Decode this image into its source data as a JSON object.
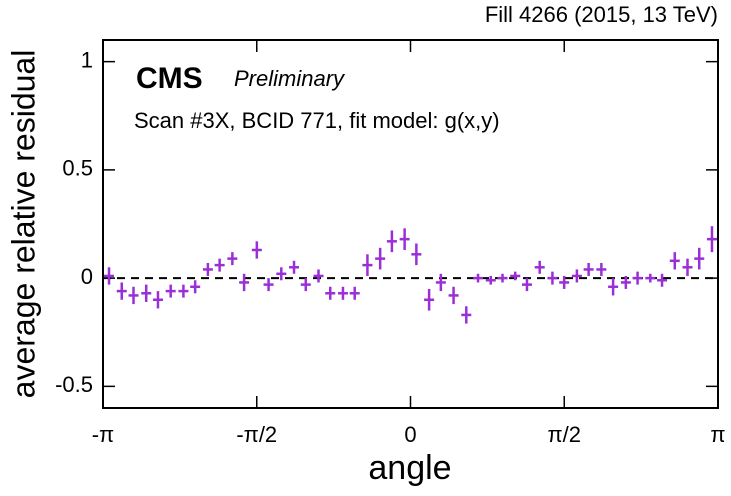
{
  "chart_data": {
    "type": "errorbar",
    "title": "Fill 4266 (2015, 13 TeV)",
    "experiment": "CMS",
    "status": "Preliminary",
    "subtitle": "Scan #3X, BCID 771, fit model: g(x,y)",
    "xlabel": "angle",
    "ylabel": "average relative residual",
    "color": "#9b2fd6",
    "reference_line": 0,
    "xlim": [
      -3.1416,
      3.1416
    ],
    "ylim": [
      -0.6,
      1.1
    ],
    "xticks": [
      {
        "value": -3.1416,
        "label": "-π"
      },
      {
        "value": -1.5708,
        "label": "-π/2"
      },
      {
        "value": 0,
        "label": "0"
      },
      {
        "value": 1.5708,
        "label": "π/2"
      },
      {
        "value": 3.1416,
        "label": "π"
      }
    ],
    "yticks": [
      -0.5,
      0,
      0.5,
      1
    ],
    "x": [
      -3.08,
      -2.95,
      -2.83,
      -2.7,
      -2.58,
      -2.45,
      -2.32,
      -2.2,
      -2.07,
      -1.95,
      -1.82,
      -1.7,
      -1.57,
      -1.45,
      -1.32,
      -1.19,
      -1.07,
      -0.94,
      -0.82,
      -0.69,
      -0.57,
      -0.44,
      -0.31,
      -0.19,
      -0.06,
      0.06,
      0.19,
      0.31,
      0.44,
      0.57,
      0.69,
      0.82,
      0.94,
      1.07,
      1.19,
      1.32,
      1.45,
      1.57,
      1.7,
      1.82,
      1.95,
      2.07,
      2.2,
      2.32,
      2.45,
      2.57,
      2.7,
      2.83,
      2.95,
      3.08
    ],
    "values": [
      0.01,
      -0.06,
      -0.08,
      -0.07,
      -0.1,
      -0.06,
      -0.06,
      -0.04,
      0.04,
      0.06,
      0.09,
      -0.02,
      0.13,
      -0.03,
      0.02,
      0.05,
      -0.03,
      0.01,
      -0.07,
      -0.07,
      -0.07,
      0.06,
      0.09,
      0.17,
      0.18,
      0.11,
      -0.1,
      -0.02,
      -0.08,
      -0.17,
      0.0,
      -0.01,
      0.0,
      0.01,
      -0.03,
      0.05,
      0.0,
      -0.02,
      0.01,
      0.04,
      0.04,
      -0.04,
      -0.02,
      0.0,
      0.0,
      -0.01,
      0.08,
      0.05,
      0.09,
      0.18
    ],
    "errors": [
      0.04,
      0.04,
      0.04,
      0.04,
      0.04,
      0.03,
      0.03,
      0.03,
      0.03,
      0.03,
      0.03,
      0.04,
      0.04,
      0.03,
      0.03,
      0.03,
      0.03,
      0.03,
      0.03,
      0.03,
      0.03,
      0.05,
      0.05,
      0.05,
      0.05,
      0.05,
      0.05,
      0.04,
      0.04,
      0.04,
      0.02,
      0.02,
      0.02,
      0.02,
      0.03,
      0.03,
      0.03,
      0.03,
      0.03,
      0.03,
      0.03,
      0.04,
      0.03,
      0.03,
      0.02,
      0.03,
      0.04,
      0.04,
      0.05,
      0.06
    ]
  }
}
